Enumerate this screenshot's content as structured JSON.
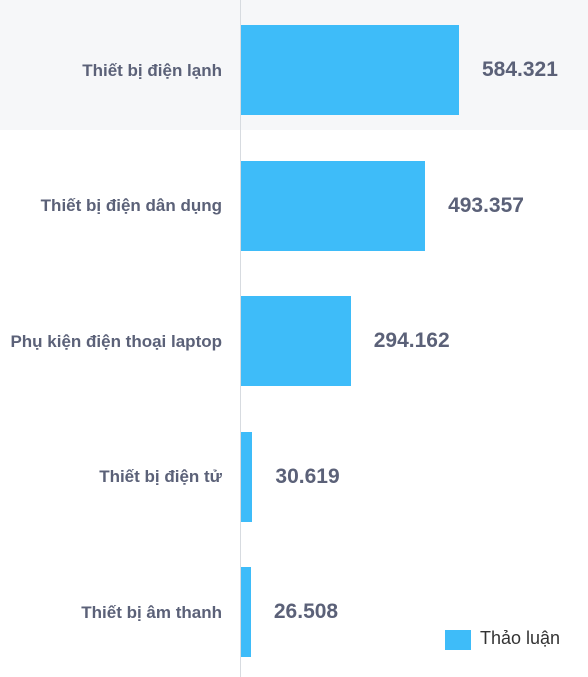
{
  "chart_data": {
    "type": "bar",
    "orientation": "horizontal",
    "categories": [
      "Thiết bị điện lạnh",
      "Thiết bị điện dân dụng",
      "Phụ kiện điện thoại laptop",
      "Thiết bị điện tử",
      "Thiết bị âm thanh"
    ],
    "series": [
      {
        "name": "Thảo luận",
        "color": "#3ebcf9",
        "values": [
          584321,
          493357,
          294162,
          30619,
          26508
        ],
        "value_labels": [
          "584.321",
          "493.357",
          "294.162",
          "30.619",
          "26.508"
        ]
      }
    ]
  }
}
